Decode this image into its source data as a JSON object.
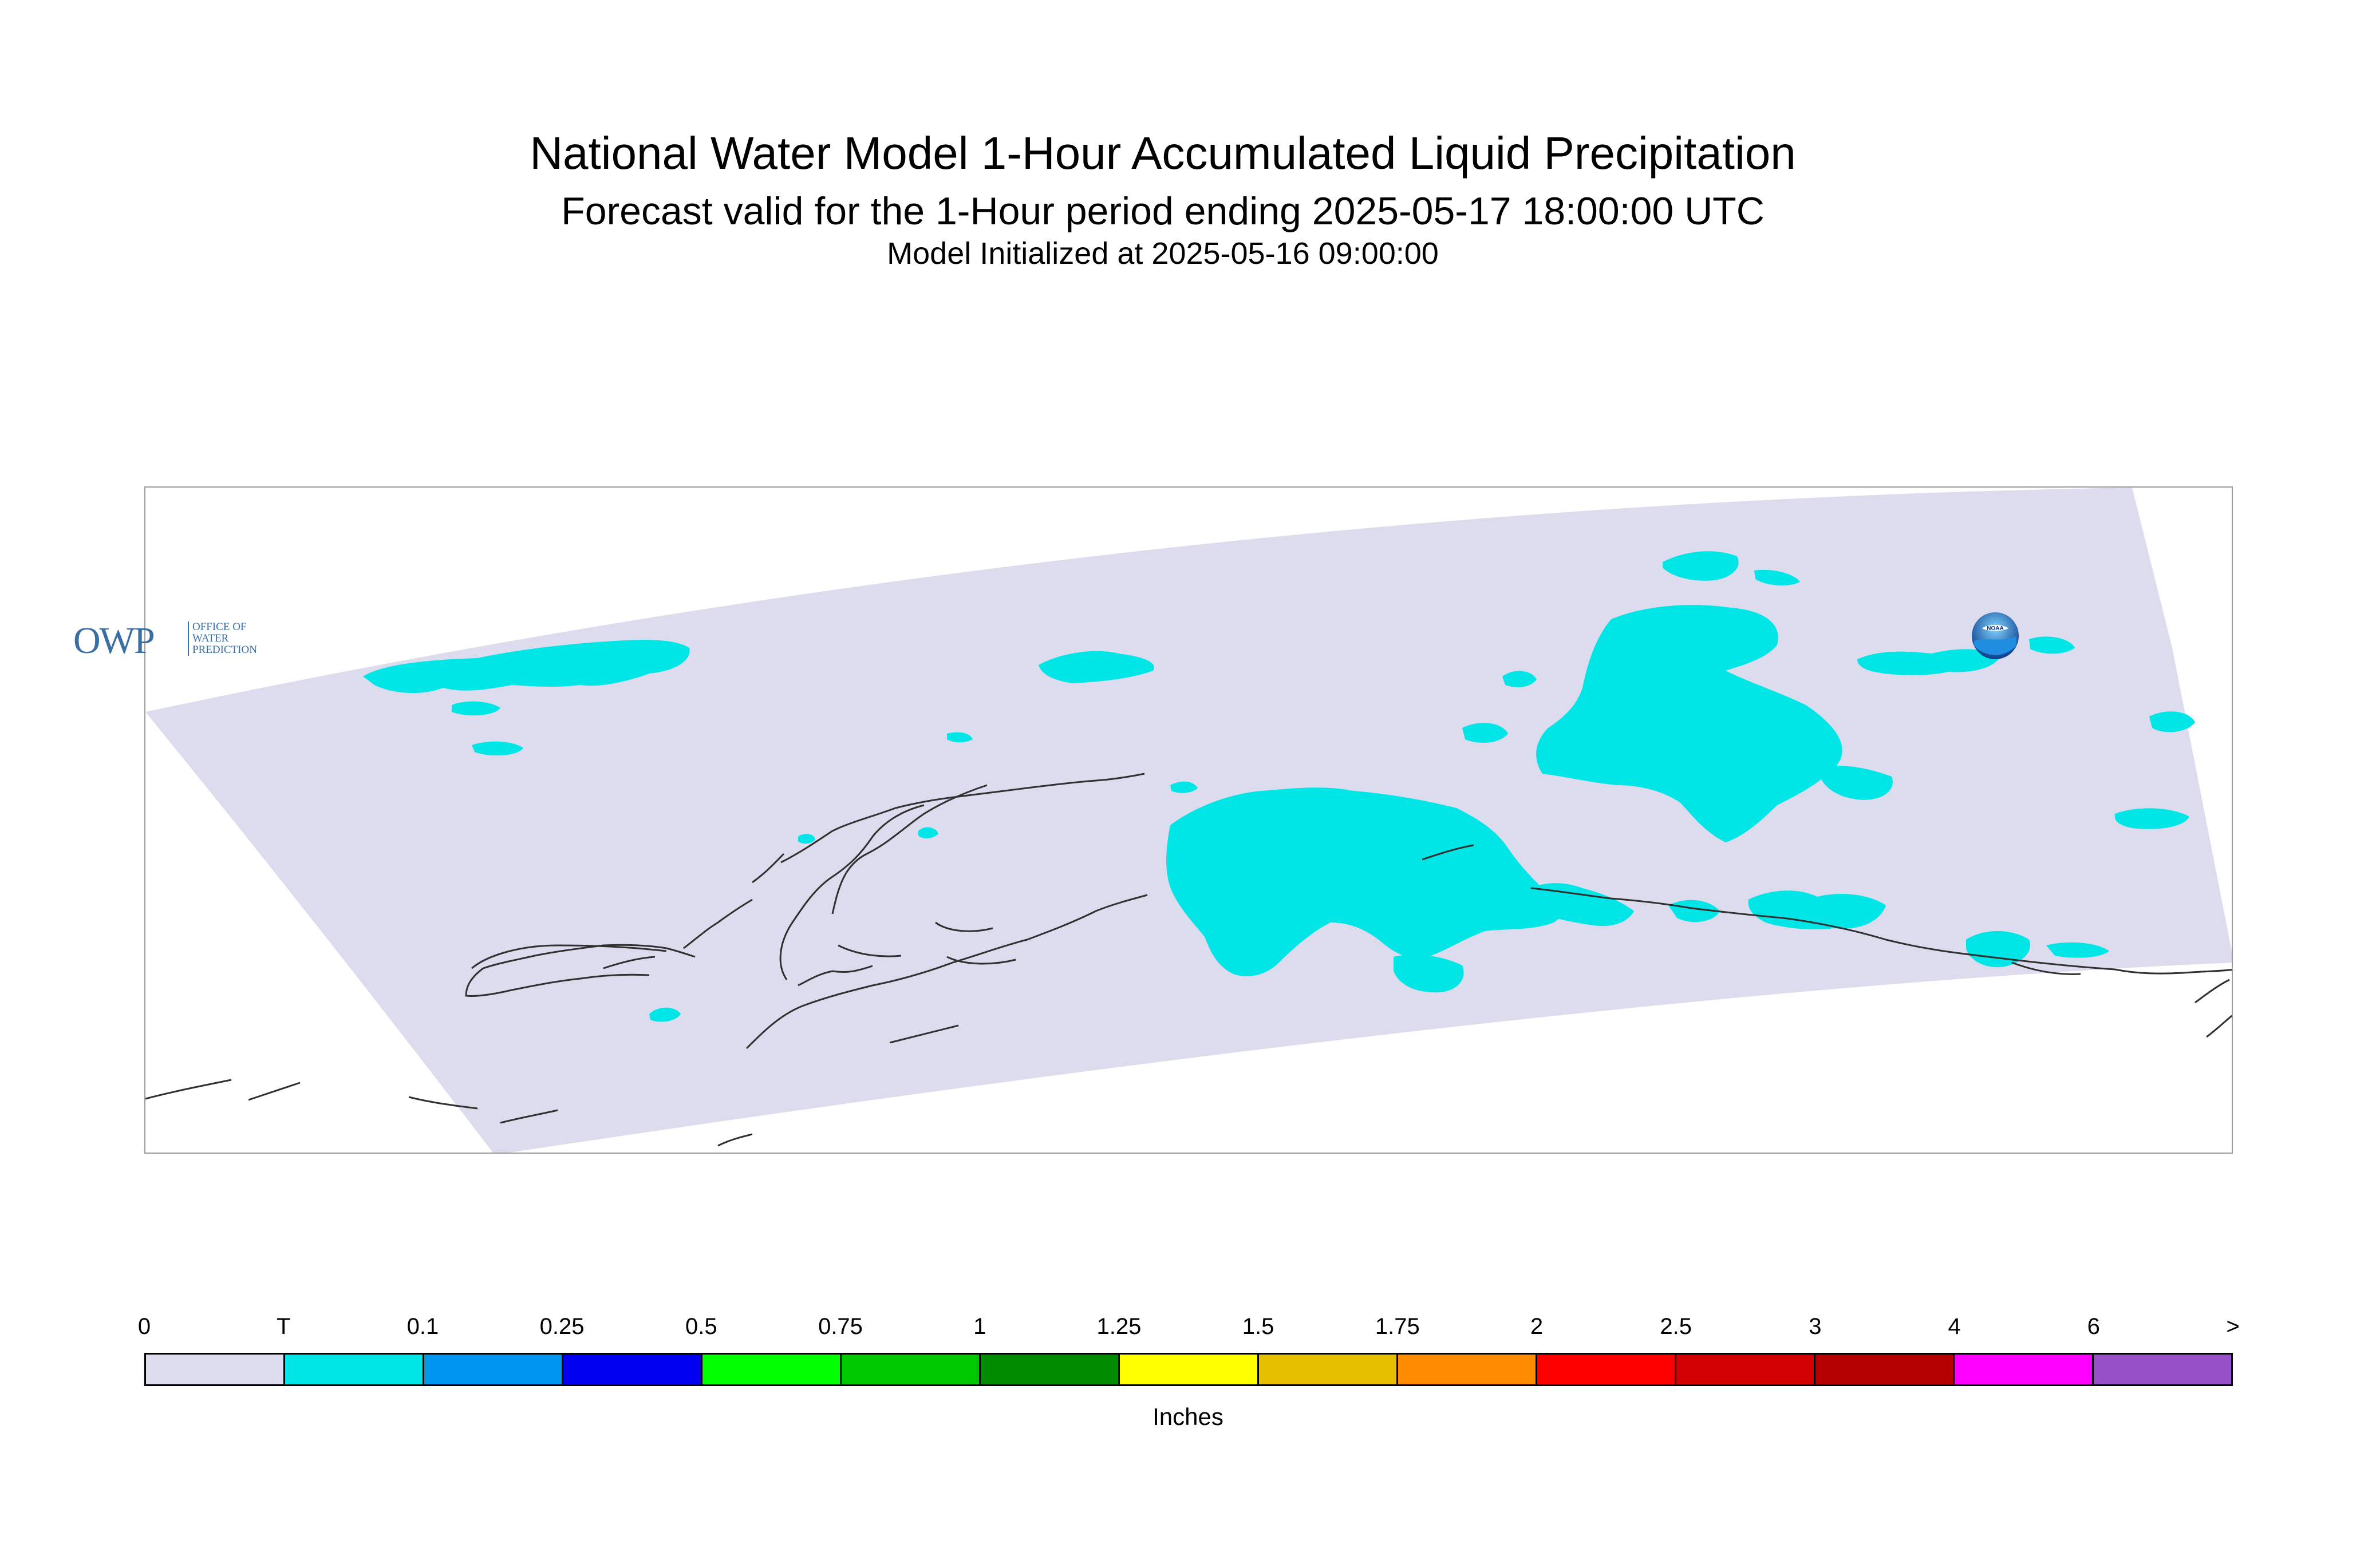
{
  "header": {
    "title": "National Water Model 1-Hour Accumulated Liquid Precipitation",
    "subtitle": "Forecast valid for the 1-Hour period ending 2025-05-17 18:00:00 UTC",
    "init_line": "Model Initialized at 2025-05-16 09:00:00"
  },
  "logos": {
    "owp_letters": "OWP",
    "owp_line1": "OFFICE OF",
    "owp_line2": "WATER",
    "owp_line3": "PREDICTION",
    "noaa": "NOAA"
  },
  "colors": {
    "domain_fill": "#dcdcee",
    "trace_fill": "#00e6e6",
    "coastline": "#303030",
    "frame": "#9a9a9a"
  },
  "legend": {
    "unit_label": "Inches",
    "tick_labels": [
      "0",
      "T",
      "0.1",
      "0.25",
      "0.5",
      "0.75",
      "1",
      "1.25",
      "1.5",
      "1.75",
      "2",
      "2.5",
      "3",
      "4",
      "6",
      ">"
    ],
    "bins": [
      {
        "from": "0",
        "to": "T",
        "color": "#dcdcee"
      },
      {
        "from": "T",
        "to": "0.1",
        "color": "#00e6e6"
      },
      {
        "from": "0.1",
        "to": "0.25",
        "color": "#0096f0"
      },
      {
        "from": "0.25",
        "to": "0.5",
        "color": "#0000f0"
      },
      {
        "from": "0.5",
        "to": "0.75",
        "color": "#00ff00"
      },
      {
        "from": "0.75",
        "to": "1",
        "color": "#00c800"
      },
      {
        "from": "1",
        "to": "1.25",
        "color": "#008c00"
      },
      {
        "from": "1.25",
        "to": "1.5",
        "color": "#ffff00"
      },
      {
        "from": "1.5",
        "to": "1.75",
        "color": "#e6be00"
      },
      {
        "from": "1.75",
        "to": "2",
        "color": "#ff8c00"
      },
      {
        "from": "2",
        "to": "2.5",
        "color": "#ff0000"
      },
      {
        "from": "2.5",
        "to": "3",
        "color": "#d20000"
      },
      {
        "from": "3",
        "to": "4",
        "color": "#b40000"
      },
      {
        "from": "4",
        "to": "6",
        "color": "#ff00ff"
      },
      {
        "from": "6",
        "to": ">",
        "color": "#9650c8"
      }
    ]
  }
}
